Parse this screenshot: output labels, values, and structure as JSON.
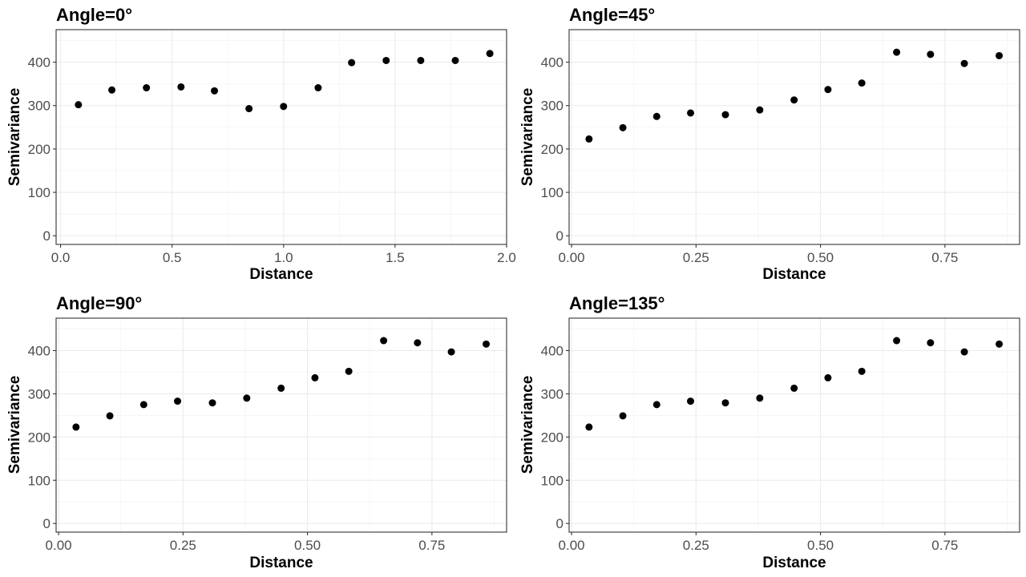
{
  "chart_data": [
    {
      "type": "scatter",
      "title": "Angle=0°",
      "xlabel": "Distance",
      "ylabel": "Semivariance",
      "xlim": [
        -0.02,
        2.0
      ],
      "ylim": [
        -20,
        475
      ],
      "xticks": [
        0.0,
        0.5,
        1.0,
        1.5,
        2.0
      ],
      "xtick_labels": [
        "0.0",
        "0.5",
        "1.0",
        "1.5",
        "2.0"
      ],
      "yticks": [
        0,
        100,
        200,
        300,
        400
      ],
      "ytick_labels": [
        "0",
        "100",
        "200",
        "300",
        "400"
      ],
      "grid": true,
      "x": [
        0.08,
        0.23,
        0.385,
        0.54,
        0.69,
        0.845,
        1.0,
        1.155,
        1.305,
        1.46,
        1.615,
        1.77,
        1.925
      ],
      "y": [
        302,
        336,
        341,
        343,
        334,
        293,
        298,
        341,
        399,
        404,
        404,
        404,
        420
      ]
    },
    {
      "type": "scatter",
      "title": "Angle=45°",
      "xlabel": "Distance",
      "ylabel": "Semivariance",
      "xlim": [
        -0.005,
        0.9
      ],
      "ylim": [
        -20,
        475
      ],
      "xticks": [
        0.0,
        0.25,
        0.5,
        0.75
      ],
      "xtick_labels": [
        "0.00",
        "0.25",
        "0.50",
        "0.75"
      ],
      "yticks": [
        0,
        100,
        200,
        300,
        400
      ],
      "ytick_labels": [
        "0",
        "100",
        "200",
        "300",
        "400"
      ],
      "grid": true,
      "x": [
        0.035,
        0.103,
        0.171,
        0.239,
        0.309,
        0.378,
        0.447,
        0.515,
        0.583,
        0.653,
        0.721,
        0.789,
        0.859
      ],
      "y": [
        223,
        249,
        275,
        283,
        279,
        290,
        313,
        337,
        352,
        423,
        418,
        397,
        415
      ]
    },
    {
      "type": "scatter",
      "title": "Angle=90°",
      "xlabel": "Distance",
      "ylabel": "Semivariance",
      "xlim": [
        -0.005,
        0.9
      ],
      "ylim": [
        -20,
        475
      ],
      "xticks": [
        0.0,
        0.25,
        0.5,
        0.75
      ],
      "xtick_labels": [
        "0.00",
        "0.25",
        "0.50",
        "0.75"
      ],
      "yticks": [
        0,
        100,
        200,
        300,
        400
      ],
      "ytick_labels": [
        "0",
        "100",
        "200",
        "300",
        "400"
      ],
      "grid": true,
      "x": [
        0.035,
        0.103,
        0.171,
        0.239,
        0.309,
        0.378,
        0.447,
        0.515,
        0.583,
        0.653,
        0.721,
        0.789,
        0.859
      ],
      "y": [
        223,
        249,
        275,
        283,
        279,
        290,
        313,
        337,
        352,
        423,
        418,
        397,
        415
      ]
    },
    {
      "type": "scatter",
      "title": "Angle=135°",
      "xlabel": "Distance",
      "ylabel": "Semivariance",
      "xlim": [
        -0.005,
        0.9
      ],
      "ylim": [
        -20,
        475
      ],
      "xticks": [
        0.0,
        0.25,
        0.5,
        0.75
      ],
      "xtick_labels": [
        "0.00",
        "0.25",
        "0.50",
        "0.75"
      ],
      "yticks": [
        0,
        100,
        200,
        300,
        400
      ],
      "ytick_labels": [
        "0",
        "100",
        "200",
        "300",
        "400"
      ],
      "grid": true,
      "x": [
        0.035,
        0.103,
        0.171,
        0.239,
        0.309,
        0.378,
        0.447,
        0.515,
        0.583,
        0.653,
        0.721,
        0.789,
        0.859
      ],
      "y": [
        223,
        249,
        275,
        283,
        279,
        290,
        313,
        337,
        352,
        423,
        418,
        397,
        415
      ]
    }
  ],
  "colors": {
    "point": "#000000",
    "grid_major": "#ebebeb",
    "grid_minor": "#f2f2f2",
    "border": "#333333",
    "tick_text": "#4d4d4d"
  }
}
